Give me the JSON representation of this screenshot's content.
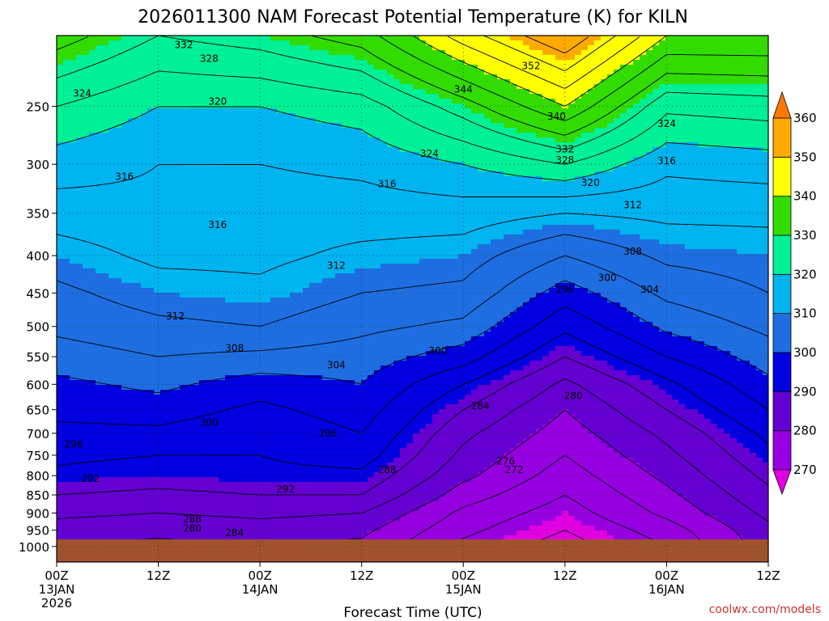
{
  "chart_data": {
    "type": "heatmap",
    "title": "2026011300 NAM Forecast Potential Temperature (K) for KILN",
    "xlabel": "Forecast Time (UTC)",
    "ylabel": "",
    "y_scale": "log",
    "y_reversed": true,
    "y_ticks": [
      250,
      300,
      350,
      400,
      450,
      500,
      550,
      600,
      650,
      700,
      750,
      800,
      850,
      900,
      950,
      1000
    ],
    "y_tick_labels": [
      "250",
      "300",
      "350",
      "400",
      "450",
      "500",
      "550",
      "600",
      "650",
      "700",
      "750",
      "800",
      "850",
      "900",
      "950",
      "1000"
    ],
    "ylim": [
      1050,
      200
    ],
    "xlim": [
      "2026-01-13T00Z",
      "2026-01-16T12Z"
    ],
    "x_ticks": [
      {
        "time": "2026-01-13T00Z",
        "lines": [
          "00Z",
          "13JAN",
          "2026"
        ]
      },
      {
        "time": "2026-01-13T12Z",
        "lines": [
          "12Z"
        ]
      },
      {
        "time": "2026-01-14T00Z",
        "lines": [
          "00Z",
          "14JAN"
        ]
      },
      {
        "time": "2026-01-14T12Z",
        "lines": [
          "12Z"
        ]
      },
      {
        "time": "2026-01-15T00Z",
        "lines": [
          "00Z",
          "15JAN"
        ]
      },
      {
        "time": "2026-01-15T12Z",
        "lines": [
          "12Z"
        ]
      },
      {
        "time": "2026-01-16T00Z",
        "lines": [
          "00Z",
          "16JAN"
        ]
      },
      {
        "time": "2026-01-16T12Z",
        "lines": [
          "12Z"
        ]
      }
    ],
    "grid": "dotted at x ticks and y ticks",
    "colorbar": {
      "levels": [
        270,
        280,
        290,
        300,
        310,
        320,
        330,
        340,
        350,
        360
      ],
      "labels": [
        "270",
        "280",
        "290",
        "300",
        "310",
        "320",
        "330",
        "340",
        "350",
        "360"
      ],
      "colors": [
        "#e100e1",
        "#9600e1",
        "#6400d2",
        "#0000e1",
        "#1e6ee1",
        "#00b4f0",
        "#00f096",
        "#32dc00",
        "#ffff00",
        "#ffaa00",
        "#ff7800"
      ],
      "extend": "both"
    },
    "contour_interval_K": 4,
    "theta_profiles": {
      "description": "potential temperature (K) at pressure levels, per forecast time",
      "pressure_levels": [
        1000,
        950,
        900,
        850,
        800,
        750,
        700,
        650,
        600,
        550,
        500,
        450,
        400,
        350,
        300,
        250,
        200
      ],
      "times": [
        "2026-01-13T00Z",
        "2026-01-13T12Z",
        "2026-01-14T00Z",
        "2026-01-14T12Z",
        "2026-01-15T00Z",
        "2026-01-15T12Z",
        "2026-01-16T00Z",
        "2026-01-16T12Z"
      ],
      "values": [
        [
          280,
          282,
          285,
          288,
          291,
          293,
          295,
          297,
          299,
          302,
          305,
          307,
          310,
          314,
          318,
          324,
          334
        ],
        [
          279,
          281,
          284,
          287,
          290,
          292,
          295,
          298,
          301,
          304,
          307,
          310,
          313,
          315,
          316,
          320,
          328
        ],
        [
          280,
          282,
          285,
          288,
          291,
          292,
          293,
          295,
          298,
          303,
          308,
          311,
          313,
          314,
          316,
          320,
          330
        ],
        [
          279,
          281,
          284,
          288,
          291,
          294,
          296,
          298,
          300,
          302,
          305,
          308,
          311,
          314,
          317,
          322,
          334
        ],
        [
          271,
          273,
          275,
          278,
          281,
          283,
          285,
          288,
          292,
          298,
          303,
          307,
          310,
          314,
          320,
          330,
          346
        ],
        [
          266,
          268,
          270,
          272,
          274,
          276,
          278,
          280,
          283,
          288,
          293,
          298,
          304,
          312,
          324,
          340,
          356
        ],
        [
          272,
          274,
          277,
          279,
          281,
          283,
          285,
          288,
          291,
          296,
          301,
          305,
          309,
          313,
          317,
          325,
          340
        ],
        [
          282,
          283,
          285,
          287,
          289,
          291,
          293,
          296,
          299,
          302,
          305,
          308,
          310,
          313,
          318,
          326,
          340
        ]
      ]
    },
    "contour_labels": [
      {
        "text": "332",
        "time": "2026-01-13T15Z",
        "p": 206
      },
      {
        "text": "328",
        "time": "2026-01-13T18Z",
        "p": 215
      },
      {
        "text": "324",
        "time": "2026-01-13T03Z",
        "p": 240
      },
      {
        "text": "320",
        "time": "2026-01-13T19Z",
        "p": 246
      },
      {
        "text": "352",
        "time": "2026-01-15T08Z",
        "p": 220
      },
      {
        "text": "344",
        "time": "2026-01-15T00Z",
        "p": 237
      },
      {
        "text": "340",
        "time": "2026-01-15T11Z",
        "p": 258
      },
      {
        "text": "332",
        "time": "2026-01-15T12Z",
        "p": 286
      },
      {
        "text": "328",
        "time": "2026-01-15T12Z",
        "p": 296
      },
      {
        "text": "324",
        "time": "2026-01-14T20Z",
        "p": 290
      },
      {
        "text": "324",
        "time": "2026-01-16T00Z",
        "p": 264
      },
      {
        "text": "316",
        "time": "2026-01-16T00Z",
        "p": 297
      },
      {
        "text": "320",
        "time": "2026-01-15T15Z",
        "p": 318
      },
      {
        "text": "316",
        "time": "2026-01-13T08Z",
        "p": 312
      },
      {
        "text": "316",
        "time": "2026-01-14T15Z",
        "p": 319
      },
      {
        "text": "312",
        "time": "2026-01-15T20Z",
        "p": 341
      },
      {
        "text": "316",
        "time": "2026-01-13T19Z",
        "p": 363
      },
      {
        "text": "312",
        "time": "2026-01-14T09Z",
        "p": 413
      },
      {
        "text": "308",
        "time": "2026-01-15T20Z",
        "p": 395
      },
      {
        "text": "300",
        "time": "2026-01-15T17Z",
        "p": 429
      },
      {
        "text": "296",
        "time": "2026-01-15T12Z",
        "p": 445
      },
      {
        "text": "304",
        "time": "2026-01-15T22Z",
        "p": 445
      },
      {
        "text": "312",
        "time": "2026-01-13T14Z",
        "p": 484
      },
      {
        "text": "308",
        "time": "2026-01-13T21Z",
        "p": 535
      },
      {
        "text": "304",
        "time": "2026-01-14T09Z",
        "p": 565
      },
      {
        "text": "300",
        "time": "2026-01-14T21Z",
        "p": 540
      },
      {
        "text": "300",
        "time": "2026-01-13T18Z",
        "p": 677
      },
      {
        "text": "284",
        "time": "2026-01-15T02Z",
        "p": 642
      },
      {
        "text": "280",
        "time": "2026-01-15T13Z",
        "p": 622
      },
      {
        "text": "296",
        "time": "2026-01-14T08Z",
        "p": 700
      },
      {
        "text": "296",
        "time": "2026-01-13T02Z",
        "p": 725
      },
      {
        "text": "276",
        "time": "2026-01-15T05Z",
        "p": 765
      },
      {
        "text": "272",
        "time": "2026-01-15T06Z",
        "p": 785
      },
      {
        "text": "288",
        "time": "2026-01-14T15Z",
        "p": 785
      },
      {
        "text": "292",
        "time": "2026-01-13T04Z",
        "p": 808
      },
      {
        "text": "292",
        "time": "2026-01-14T03Z",
        "p": 835
      },
      {
        "text": "288",
        "time": "2026-01-13T16Z",
        "p": 917
      },
      {
        "text": "280",
        "time": "2026-01-13T16Z",
        "p": 945
      },
      {
        "text": "284",
        "time": "2026-01-13T21Z",
        "p": 958
      }
    ],
    "ground": {
      "surface_pressure_hPa": 978,
      "color": "#a0522d"
    }
  },
  "credit": "coolwx.com/models"
}
